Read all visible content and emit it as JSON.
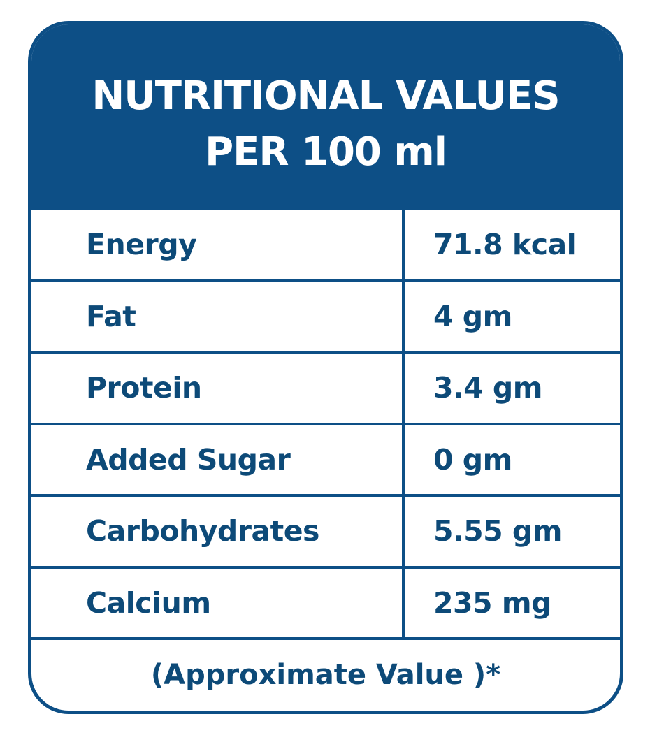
{
  "header": {
    "title_lines": [
      "NUTRITIONAL VALUES",
      "PER 100 ml"
    ]
  },
  "table": {
    "rows": [
      [
        "Energy",
        "71.8 kcal"
      ],
      [
        "Fat",
        "4 gm"
      ],
      [
        "Protein",
        "3.4 gm"
      ],
      [
        "Added Sugar",
        "0 gm"
      ],
      [
        "Carbohydrates",
        "5.55 gm"
      ],
      [
        "Calcium",
        "235 mg"
      ]
    ]
  },
  "footer": "(Approximate Value )*"
}
